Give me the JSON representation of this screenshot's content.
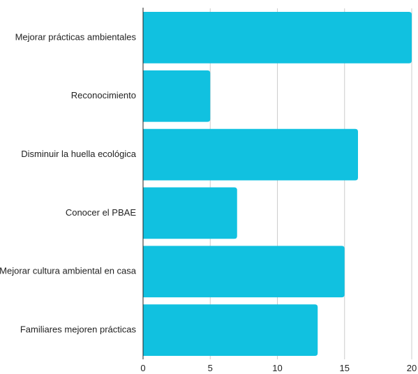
{
  "chart_data": {
    "type": "bar",
    "orientation": "horizontal",
    "categories": [
      "Mejorar prácticas ambientales",
      "Reconocimiento",
      "Disminuir la huella ecológica",
      "Conocer el PBAE",
      "Mejorar cultura ambiental en casa",
      "Familiares mejoren prácticas"
    ],
    "values": [
      20,
      5,
      16,
      7,
      15,
      13
    ],
    "xlim": [
      0,
      20
    ],
    "xticks": [
      0,
      5,
      10,
      15,
      20
    ],
    "title": "",
    "xlabel": "",
    "ylabel": "",
    "grid": "vertical",
    "legend": "none",
    "bar_color": "#11c1e0",
    "grid_color": "#cccccc",
    "axis_color": "#222222"
  }
}
